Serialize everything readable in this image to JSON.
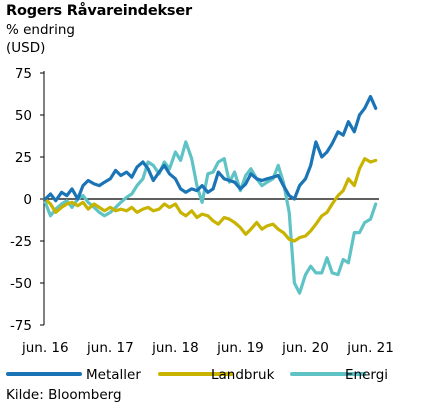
{
  "header": {
    "title": "Rogers Råvareindekser",
    "subtitle_line1": "% endring",
    "subtitle_line2": "(USD)"
  },
  "source": "Kilde: Bloomberg",
  "colors": {
    "metaller": "#1a74b5",
    "landbruk": "#c8b400",
    "energi": "#5fc3c6",
    "axis": "#000000"
  },
  "chart_data": {
    "type": "line",
    "title": "Rogers Råvareindekser",
    "ylabel": "% endring (USD)",
    "ylim": [
      -75,
      75
    ],
    "yticks": [
      75,
      50,
      25,
      0,
      -25,
      -50,
      -75
    ],
    "ytick_labels": [
      "75",
      "50",
      "25",
      "0",
      "-25",
      "-50",
      "-75"
    ],
    "xlim": [
      2016.4,
      2021.55
    ],
    "xticks": [
      2016.42,
      2017.42,
      2018.42,
      2019.42,
      2020.42,
      2021.42
    ],
    "xtick_labels": [
      "jun. 16",
      "jun. 17",
      "jun. 18",
      "jun. 19",
      "jun. 20",
      "jun. 21"
    ],
    "legend_position": "bottom",
    "series": [
      {
        "name": "Metaller",
        "color": "#1a74b5",
        "x": [
          2016.42,
          2016.5,
          2016.58,
          2016.67,
          2016.75,
          2016.83,
          2016.92,
          2017.0,
          2017.08,
          2017.17,
          2017.25,
          2017.33,
          2017.42,
          2017.5,
          2017.58,
          2017.67,
          2017.75,
          2017.83,
          2017.92,
          2018.0,
          2018.08,
          2018.17,
          2018.25,
          2018.33,
          2018.42,
          2018.5,
          2018.58,
          2018.67,
          2018.75,
          2018.83,
          2018.92,
          2019.0,
          2019.08,
          2019.17,
          2019.25,
          2019.33,
          2019.42,
          2019.5,
          2019.58,
          2019.67,
          2019.75,
          2019.83,
          2019.92,
          2020.0,
          2020.08,
          2020.17,
          2020.25,
          2020.33,
          2020.42,
          2020.5,
          2020.58,
          2020.67,
          2020.75,
          2020.83,
          2020.92,
          2021.0,
          2021.08,
          2021.17,
          2021.25,
          2021.33,
          2021.42,
          2021.5
        ],
        "values": [
          0,
          3,
          -1,
          4,
          2,
          6,
          0,
          8,
          11,
          9,
          8,
          10,
          12,
          17,
          14,
          16,
          13,
          19,
          22,
          18,
          11,
          16,
          20,
          15,
          12,
          6,
          4,
          6,
          5,
          8,
          4,
          6,
          16,
          12,
          11,
          10,
          6,
          9,
          15,
          12,
          11,
          12,
          13,
          14,
          8,
          2,
          0,
          8,
          12,
          20,
          34,
          25,
          28,
          33,
          40,
          38,
          46,
          40,
          50,
          54,
          61,
          54
        ],
        "values_axis": "y"
      },
      {
        "name": "Landbruk",
        "color": "#c8b400",
        "x": [
          2016.42,
          2016.5,
          2016.58,
          2016.67,
          2016.75,
          2016.83,
          2016.92,
          2017.0,
          2017.08,
          2017.17,
          2017.25,
          2017.33,
          2017.42,
          2017.5,
          2017.58,
          2017.67,
          2017.75,
          2017.83,
          2017.92,
          2018.0,
          2018.08,
          2018.17,
          2018.25,
          2018.33,
          2018.42,
          2018.5,
          2018.58,
          2018.67,
          2018.75,
          2018.83,
          2018.92,
          2019.0,
          2019.08,
          2019.17,
          2019.25,
          2019.33,
          2019.42,
          2019.5,
          2019.58,
          2019.67,
          2019.75,
          2019.83,
          2019.92,
          2020.0,
          2020.08,
          2020.17,
          2020.25,
          2020.33,
          2020.42,
          2020.5,
          2020.58,
          2020.67,
          2020.75,
          2020.83,
          2020.92,
          2021.0,
          2021.08,
          2021.17,
          2021.25,
          2021.33,
          2021.42,
          2021.5
        ],
        "values": [
          0,
          -3,
          -8,
          -5,
          -3,
          -2,
          -4,
          -2,
          -6,
          -3,
          -5,
          -7,
          -5,
          -7,
          -6,
          -7,
          -5,
          -8,
          -6,
          -5,
          -7,
          -6,
          -3,
          -5,
          -3,
          -8,
          -10,
          -7,
          -11,
          -9,
          -10,
          -13,
          -15,
          -11,
          -12,
          -14,
          -17,
          -21,
          -18,
          -14,
          -18,
          -16,
          -15,
          -18,
          -20,
          -24,
          -25,
          -23,
          -22,
          -19,
          -15,
          -10,
          -8,
          -3,
          2,
          5,
          12,
          8,
          18,
          24,
          22,
          23
        ]
      },
      {
        "name": "Energi",
        "color": "#5fc3c6",
        "x": [
          2016.42,
          2016.5,
          2016.58,
          2016.67,
          2016.75,
          2016.83,
          2016.92,
          2017.0,
          2017.08,
          2017.17,
          2017.25,
          2017.33,
          2017.42,
          2017.5,
          2017.58,
          2017.67,
          2017.75,
          2017.83,
          2017.92,
          2018.0,
          2018.08,
          2018.17,
          2018.25,
          2018.33,
          2018.42,
          2018.5,
          2018.58,
          2018.67,
          2018.75,
          2018.83,
          2018.92,
          2019.0,
          2019.08,
          2019.17,
          2019.25,
          2019.33,
          2019.42,
          2019.5,
          2019.58,
          2019.67,
          2019.75,
          2019.83,
          2019.92,
          2020.0,
          2020.08,
          2020.17,
          2020.25,
          2020.33,
          2020.42,
          2020.5,
          2020.58,
          2020.67,
          2020.75,
          2020.83,
          2020.92,
          2021.0,
          2021.08,
          2021.17,
          2021.25,
          2021.33,
          2021.42,
          2021.5
        ],
        "values": [
          -2,
          -10,
          -6,
          -3,
          -1,
          -5,
          0,
          2,
          -2,
          -5,
          -8,
          -10,
          -8,
          -5,
          -2,
          1,
          3,
          8,
          12,
          22,
          20,
          15,
          22,
          18,
          28,
          23,
          34,
          24,
          8,
          -2,
          15,
          16,
          22,
          24,
          10,
          16,
          5,
          14,
          18,
          12,
          8,
          10,
          12,
          20,
          10,
          -8,
          -50,
          -56,
          -45,
          -40,
          -44,
          -44,
          -35,
          -44,
          -45,
          -36,
          -38,
          -20,
          -20,
          -14,
          -12,
          -3
        ]
      }
    ]
  }
}
